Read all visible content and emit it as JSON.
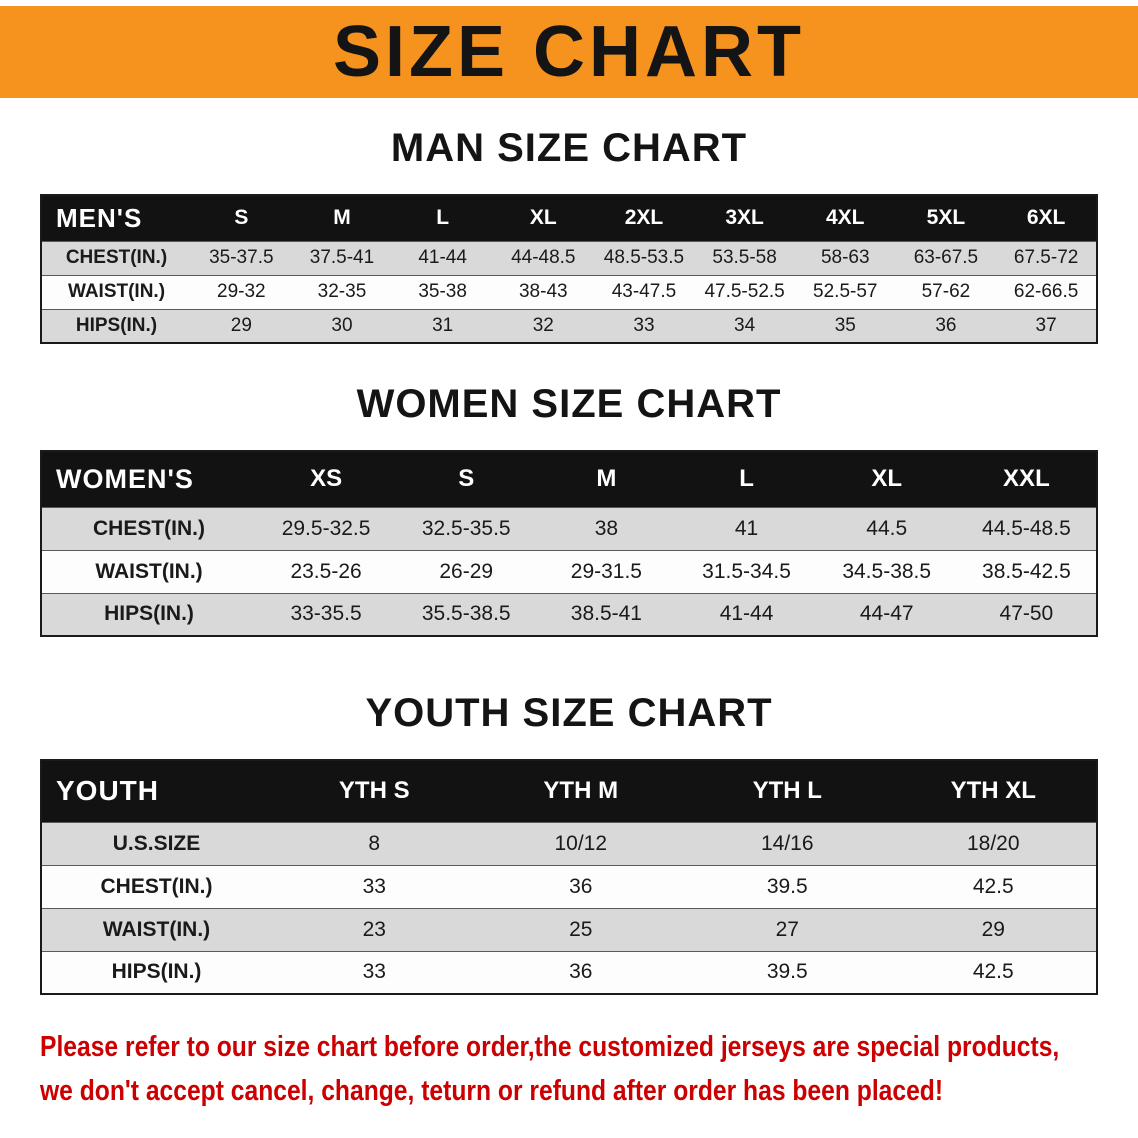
{
  "banner": {
    "title": "SIZE CHART",
    "bg_color": "#f6921e",
    "text_color": "#141414"
  },
  "sections": [
    {
      "id": "men",
      "heading": "MAN SIZE CHART",
      "table": {
        "title": "MEN'S",
        "columns": [
          "S",
          "M",
          "L",
          "XL",
          "2XL",
          "3XL",
          "4XL",
          "5XL",
          "6XL"
        ],
        "rows": [
          {
            "label": "CHEST(IN.)",
            "values": [
              "35-37.5",
              "37.5-41",
              "41-44",
              "44-48.5",
              "48.5-53.5",
              "53.5-58",
              "58-63",
              "63-67.5",
              "67.5-72"
            ]
          },
          {
            "label": "WAIST(IN.)",
            "values": [
              "29-32",
              "32-35",
              "35-38",
              "38-43",
              "43-47.5",
              "47.5-52.5",
              "52.5-57",
              "57-62",
              "62-66.5"
            ]
          },
          {
            "label": "HIPS(IN.)",
            "values": [
              "29",
              "30",
              "31",
              "32",
              "33",
              "34",
              "35",
              "36",
              "37"
            ]
          }
        ]
      }
    },
    {
      "id": "women",
      "heading": "WOMEN SIZE CHART",
      "table": {
        "title": "WOMEN'S",
        "columns": [
          "XS",
          "S",
          "M",
          "L",
          "XL",
          "XXL"
        ],
        "rows": [
          {
            "label": "CHEST(IN.)",
            "values": [
              "29.5-32.5",
              "32.5-35.5",
              "38",
              "41",
              "44.5",
              "44.5-48.5"
            ]
          },
          {
            "label": "WAIST(IN.)",
            "values": [
              "23.5-26",
              "26-29",
              "29-31.5",
              "31.5-34.5",
              "34.5-38.5",
              "38.5-42.5"
            ]
          },
          {
            "label": "HIPS(IN.)",
            "values": [
              "33-35.5",
              "35.5-38.5",
              "38.5-41",
              "41-44",
              "44-47",
              "47-50"
            ]
          }
        ]
      }
    },
    {
      "id": "youth",
      "heading": "YOUTH SIZE CHART",
      "table": {
        "title": "YOUTH",
        "columns": [
          "YTH S",
          "YTH M",
          "YTH L",
          "YTH XL"
        ],
        "rows": [
          {
            "label": "U.S.SIZE",
            "values": [
              "8",
              "10/12",
              "14/16",
              "18/20"
            ]
          },
          {
            "label": "CHEST(IN.)",
            "values": [
              "33",
              "36",
              "39.5",
              "42.5"
            ]
          },
          {
            "label": "WAIST(IN.)",
            "values": [
              "23",
              "25",
              "27",
              "29"
            ]
          },
          {
            "label": "HIPS(IN.)",
            "values": [
              "33",
              "36",
              "39.5",
              "42.5"
            ]
          }
        ]
      }
    }
  ],
  "disclaimer": {
    "color": "#cc0000",
    "lines": [
      "Please refer to our size chart before order,the customized jerseys are special products,",
      "we don't accept cancel, change, teturn or refund after order has been placed!"
    ]
  }
}
